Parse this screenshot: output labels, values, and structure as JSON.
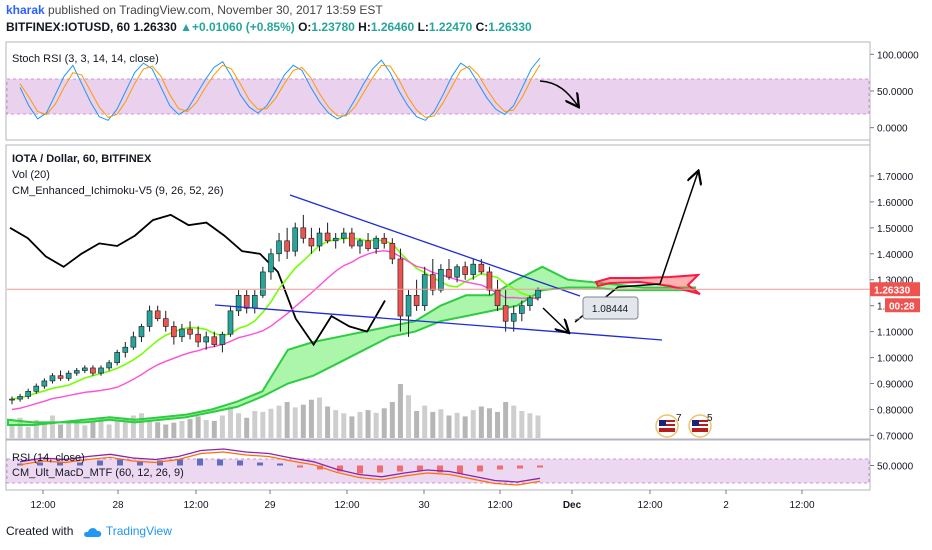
{
  "header": {
    "author": "kharak",
    "published": "published on TradingView.com, November 30, 2017 13:59 EST",
    "symbol": "BITFINEX:IOTUSD, 60",
    "last": "1.26330",
    "change": "+0.01060 (+0.85%)",
    "o_label": "O:",
    "o": "1.23780",
    "h_label": "H:",
    "h": "1.26460",
    "l_label": "L:",
    "l": "1.22470",
    "c_label": "C:",
    "c": "1.26330"
  },
  "footer": {
    "created_with": "Created with",
    "brand": "TradingView"
  },
  "colors": {
    "bull": "#26a69a",
    "bear": "#ef5350",
    "band": "#e1bee7",
    "price_line": "#ef9a9a",
    "trend": "#1f2bd6"
  },
  "chart_data": [
    {
      "type": "line",
      "title": "Stoch RSI (3, 3, 14, 14, close)",
      "ylim": [
        -10,
        110
      ],
      "y_ticks": [
        "100.0000",
        "50.0000",
        "0.0000"
      ],
      "y_tick_values": [
        100,
        50,
        0
      ],
      "band": [
        20,
        80
      ],
      "series": [
        {
          "values": [
            55,
            30,
            12,
            20,
            45,
            70,
            85,
            60,
            35,
            15,
            10,
            25,
            50,
            75,
            88,
            80,
            55,
            30,
            18,
            25,
            45,
            65,
            82,
            90,
            70,
            45,
            28,
            20,
            30,
            50,
            72,
            85,
            78,
            55,
            35,
            20,
            12,
            18,
            38,
            60,
            80,
            92,
            75,
            50,
            30,
            15,
            10,
            22,
            45,
            70,
            88,
            80,
            60,
            40,
            25,
            18,
            30,
            55,
            80,
            95
          ]
        },
        {
          "values": [
            60,
            42,
            22,
            18,
            32,
            55,
            75,
            72,
            50,
            28,
            14,
            18,
            36,
            60,
            80,
            84,
            70,
            45,
            26,
            22,
            34,
            54,
            72,
            85,
            80,
            60,
            38,
            25,
            26,
            40,
            60,
            78,
            82,
            68,
            46,
            28,
            16,
            16,
            28,
            48,
            68,
            85,
            84,
            65,
            42,
            24,
            14,
            16,
            34,
            56,
            78,
            84,
            72,
            52,
            34,
            22,
            24,
            42,
            66,
            86
          ]
        }
      ]
    },
    {
      "type": "candlestick",
      "title": "IOTA / Dollar, 60, BITFINEX",
      "indicators": [
        "Vol (20)",
        "CM_Enhanced_Ichimoku-V5 (9, 26, 52, 26)"
      ],
      "ylim": [
        0.69,
        1.8
      ],
      "y_ticks": [
        "1.70000",
        "1.60000",
        "1.50000",
        "1.40000",
        "1.30000",
        "1.20000",
        "1.10000",
        "1.00000",
        "0.90000",
        "0.80000",
        "0.70000"
      ],
      "y_tick_values": [
        1.7,
        1.6,
        1.5,
        1.4,
        1.3,
        1.2,
        1.1,
        1.0,
        0.9,
        0.8,
        0.7
      ],
      "last_price_label": "1.26330",
      "last_price": 1.2633,
      "countdown": "00:28",
      "annotation": "1.08444",
      "annotation_value": 1.08444,
      "x_ticks": [
        "12:00",
        "28",
        "12:00",
        "29",
        "12:00",
        "30",
        "12:00",
        "Dec",
        "12:00",
        "2",
        "12:00"
      ],
      "candles": [
        [
          0.84,
          0.85,
          0.82,
          0.84
        ],
        [
          0.84,
          0.86,
          0.83,
          0.85
        ],
        [
          0.85,
          0.88,
          0.84,
          0.87
        ],
        [
          0.87,
          0.9,
          0.86,
          0.89
        ],
        [
          0.89,
          0.92,
          0.88,
          0.91
        ],
        [
          0.91,
          0.94,
          0.9,
          0.93
        ],
        [
          0.93,
          0.95,
          0.91,
          0.92
        ],
        [
          0.92,
          0.95,
          0.91,
          0.94
        ],
        [
          0.94,
          0.96,
          0.93,
          0.95
        ],
        [
          0.95,
          0.97,
          0.94,
          0.96
        ],
        [
          0.96,
          0.97,
          0.93,
          0.94
        ],
        [
          0.94,
          0.97,
          0.93,
          0.96
        ],
        [
          0.96,
          0.99,
          0.95,
          0.98
        ],
        [
          0.98,
          1.03,
          0.97,
          1.02
        ],
        [
          1.02,
          1.06,
          1.0,
          1.04
        ],
        [
          1.04,
          1.1,
          1.03,
          1.08
        ],
        [
          1.08,
          1.13,
          1.06,
          1.12
        ],
        [
          1.12,
          1.2,
          1.1,
          1.18
        ],
        [
          1.18,
          1.2,
          1.14,
          1.15
        ],
        [
          1.15,
          1.18,
          1.1,
          1.12
        ],
        [
          1.12,
          1.14,
          1.05,
          1.08
        ],
        [
          1.08,
          1.13,
          1.06,
          1.11
        ],
        [
          1.11,
          1.14,
          1.07,
          1.09
        ],
        [
          1.09,
          1.12,
          1.04,
          1.06
        ],
        [
          1.06,
          1.1,
          1.03,
          1.08
        ],
        [
          1.08,
          1.1,
          1.04,
          1.05
        ],
        [
          1.05,
          1.1,
          1.02,
          1.09
        ],
        [
          1.09,
          1.2,
          1.08,
          1.18
        ],
        [
          1.18,
          1.26,
          1.16,
          1.24
        ],
        [
          1.24,
          1.26,
          1.17,
          1.19
        ],
        [
          1.19,
          1.26,
          1.17,
          1.24
        ],
        [
          1.24,
          1.35,
          1.23,
          1.33
        ],
        [
          1.33,
          1.42,
          1.3,
          1.4
        ],
        [
          1.4,
          1.48,
          1.37,
          1.45
        ],
        [
          1.45,
          1.5,
          1.38,
          1.41
        ],
        [
          1.41,
          1.52,
          1.39,
          1.5
        ],
        [
          1.5,
          1.55,
          1.44,
          1.46
        ],
        [
          1.46,
          1.5,
          1.4,
          1.43
        ],
        [
          1.43,
          1.5,
          1.41,
          1.48
        ],
        [
          1.48,
          1.52,
          1.44,
          1.45
        ],
        [
          1.45,
          1.48,
          1.42,
          1.46
        ],
        [
          1.46,
          1.5,
          1.44,
          1.48
        ],
        [
          1.48,
          1.5,
          1.42,
          1.43
        ],
        [
          1.43,
          1.46,
          1.4,
          1.45
        ],
        [
          1.45,
          1.48,
          1.41,
          1.42
        ],
        [
          1.42,
          1.47,
          1.4,
          1.46
        ],
        [
          1.46,
          1.48,
          1.42,
          1.44
        ],
        [
          1.44,
          1.46,
          1.36,
          1.38
        ],
        [
          1.38,
          1.42,
          1.1,
          1.16
        ],
        [
          1.16,
          1.26,
          1.08,
          1.24
        ],
        [
          1.24,
          1.3,
          1.18,
          1.2
        ],
        [
          1.2,
          1.35,
          1.18,
          1.32
        ],
        [
          1.32,
          1.38,
          1.24,
          1.26
        ],
        [
          1.26,
          1.36,
          1.25,
          1.34
        ],
        [
          1.34,
          1.38,
          1.3,
          1.31
        ],
        [
          1.31,
          1.36,
          1.29,
          1.35
        ],
        [
          1.35,
          1.37,
          1.3,
          1.32
        ],
        [
          1.32,
          1.38,
          1.3,
          1.36
        ],
        [
          1.36,
          1.38,
          1.32,
          1.33
        ],
        [
          1.33,
          1.35,
          1.24,
          1.26
        ],
        [
          1.26,
          1.3,
          1.18,
          1.2
        ],
        [
          1.2,
          1.26,
          1.1,
          1.14
        ],
        [
          1.14,
          1.2,
          1.1,
          1.17
        ],
        [
          1.17,
          1.22,
          1.14,
          1.2
        ],
        [
          1.2,
          1.24,
          1.18,
          1.23
        ],
        [
          1.23,
          1.27,
          1.22,
          1.26
        ]
      ],
      "volume": [
        30,
        45,
        25,
        40,
        35,
        50,
        30,
        35,
        40,
        28,
        36,
        42,
        30,
        38,
        45,
        50,
        55,
        40,
        35,
        30,
        34,
        38,
        42,
        48,
        40,
        38,
        50,
        70,
        55,
        45,
        60,
        58,
        65,
        72,
        80,
        68,
        74,
        85,
        90,
        70,
        62,
        55,
        48,
        58,
        62,
        56,
        66,
        80,
        120,
        95,
        60,
        72,
        58,
        64,
        50,
        56,
        48,
        62,
        70,
        66,
        58,
        80,
        72,
        60,
        55,
        50
      ],
      "conversion_line": [
        1.5,
        1.46,
        1.39,
        1.35,
        1.4,
        1.44,
        1.43,
        1.47,
        1.53,
        1.55,
        1.51,
        1.52,
        1.47,
        1.41,
        1.4,
        1.33,
        1.15,
        1.05,
        1.16,
        1.12,
        1.1,
        1.22
      ],
      "cloud_top": [
        0.76,
        0.75,
        0.75,
        0.76,
        0.77,
        0.76,
        0.77,
        0.78,
        0.8,
        0.83,
        0.87,
        1.03,
        1.06,
        1.08,
        1.1,
        1.12,
        1.14,
        1.2,
        1.24,
        1.24,
        1.3,
        1.35,
        1.3,
        1.29,
        1.28,
        1.27,
        1.27,
        1.27
      ],
      "cloud_bottom": [
        0.74,
        0.74,
        0.75,
        0.75,
        0.76,
        0.75,
        0.76,
        0.77,
        0.79,
        0.81,
        0.85,
        0.9,
        0.93,
        0.98,
        1.03,
        1.08,
        1.1,
        1.14,
        1.16,
        1.18,
        1.2,
        1.26,
        1.27,
        1.27,
        1.26,
        1.26,
        1.26,
        1.26
      ]
    },
    {
      "type": "line",
      "title": "RSI (14, close)",
      "subtitle": "CM_Ult_MacD_MTF (60, 12, 26, 9)",
      "y_ticks": [
        "50.0000"
      ],
      "y_tick_values": [
        50
      ],
      "ylim": [
        20,
        80
      ],
      "band": [
        30,
        70
      ],
      "rsi": [
        55,
        60,
        58,
        62,
        65,
        60,
        58,
        62,
        70,
        72,
        68,
        66,
        60,
        55,
        45,
        38,
        35,
        40,
        44,
        42,
        36,
        30,
        28,
        33
      ],
      "macd_histogram": [
        2,
        3,
        4,
        3,
        5,
        6,
        4,
        5,
        6,
        7,
        6,
        5,
        3,
        2,
        -2,
        -4,
        -6,
        -8,
        -7,
        -6,
        -5,
        -7,
        -8,
        -6,
        -4,
        -3,
        -2
      ]
    }
  ]
}
